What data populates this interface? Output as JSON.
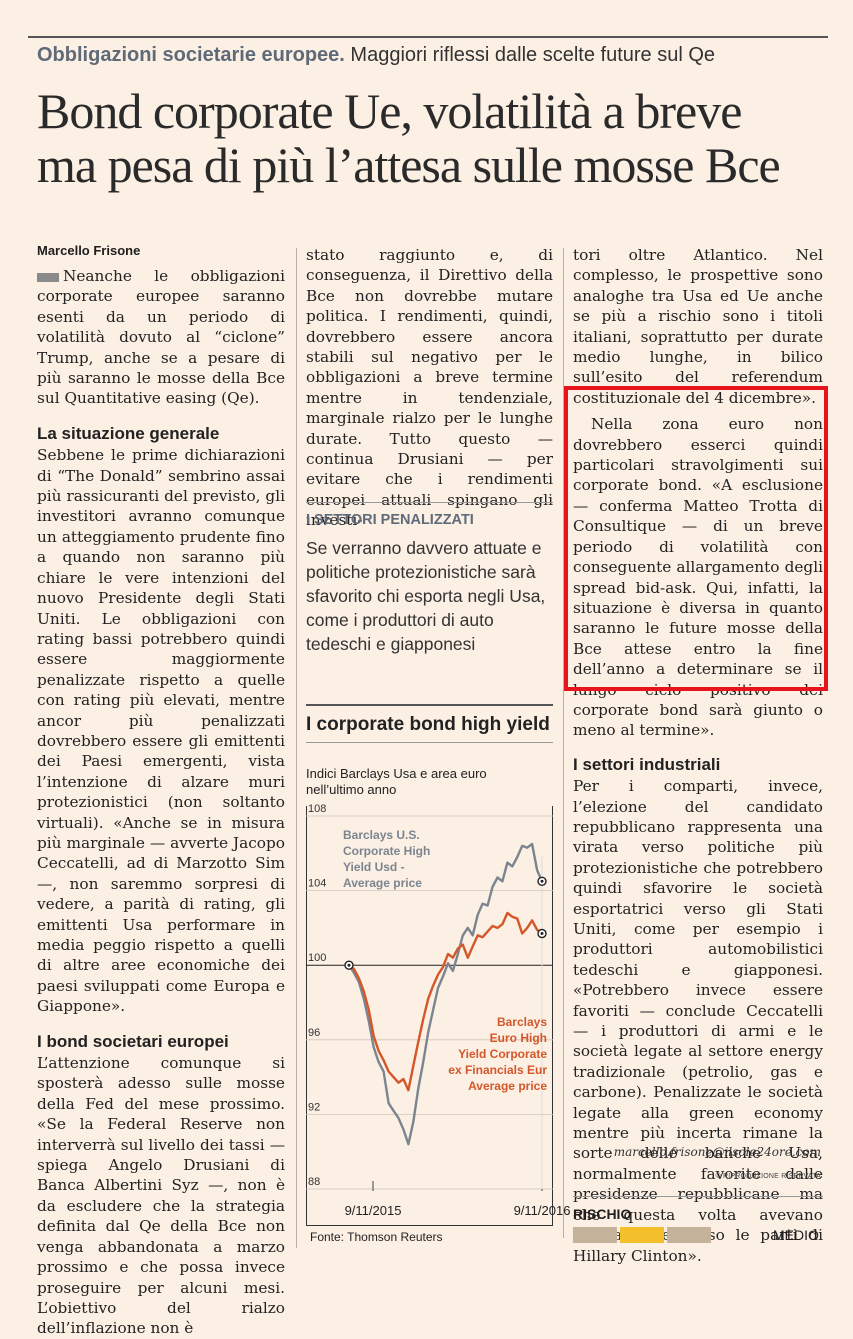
{
  "header": {
    "kicker_bold": "Obbligazioni societarie europee.",
    "kicker_rest": "Maggiori riflessi dalle scelte future sul Qe",
    "headline_line1": "Bond corporate Ue, volatilità a breve",
    "headline_line2": "ma pesa di più l’attesa sulle mosse Bce"
  },
  "byline": "Marcello Frisone",
  "column1": {
    "lead": "Neanche le obbligazioni corporate europee saranno esenti da un periodo di volatilità dovuto al “ciclone” Trump, anche se a pesare di più saranno le mosse della Bce sul Quantitative easing (Qe).",
    "subhead1": "La situazione generale",
    "para1": "Sebbene le prime dichiarazioni di “The Donald” sembrino assai più rassicuranti del previsto, gli investitori avranno comunque un atteggiamento prudente fino a quando non saranno più chiare le vere intenzioni del nuovo Presidente degli Stati Uniti. Le obbligazioni con rating bassi potrebbero quindi essere maggiormente penalizzate rispetto a quelle con rating più elevati, mentre ancor più penalizzati dovrebbero essere gli emittenti dei Paesi emergenti, vista l’intenzione di alzare muri protezionistici (non soltanto virtuali). «Anche se in misura più marginale — avverte Jacopo Ceccatelli, ad di Marzotto Sim —, non saremmo sorpresi di vedere, a parità di rating, gli emittenti Usa performare in media peggio rispetto a quelli di altre aree economiche dei paesi sviluppati come Europa e Giappone».",
    "subhead2": "I bond societari europei",
    "para2": "L’attenzione comunque si sposterà adesso sulle mosse della Fed del mese prossimo. «Se la Federal Reserve non interverrà sul livello dei tassi — spiega Angelo Drusiani di Banca Albertini Syz —, non è da escludere che la strategia definita dal Qe della Bce non venga abbandonata a marzo prossimo e che possa invece proseguire per alcuni mesi. L’obiettivo del rialzo dell’inflazione non è"
  },
  "column2": {
    "para": "stato raggiunto e, di conseguenza, il Direttivo della Bce non dovrebbe mutare politica. I rendimenti, quindi, dovrebbero essere ancora stabili sul negativo per le obbligazioni a breve termine mentre in tendenziale, marginale rialzo per le lunghe durate. Tutto questo — continua Drusiani — per evitare che i rendimenti europei attuali spingano gli investi-",
    "box_title": "I SETTORI PENALIZZATI",
    "box_text": "Se verranno davvero attuate e politiche protezionistiche sarà sfavorito chi esporta negli Usa, come i produttori di auto tedeschi e giapponesi"
  },
  "chart_data": {
    "type": "line",
    "title": "I corporate bond high yield",
    "subtitle": "Indici Barclays Usa e area euro nell’ultimo anno",
    "y_ticks": [
      88,
      92,
      96,
      100,
      104,
      108
    ],
    "ylim": [
      88,
      108
    ],
    "x_tick_labels": [
      "9/11/2015",
      "9/11/2016"
    ],
    "reference_line": 100,
    "source": "Fonte: Thomson Reuters",
    "series": [
      {
        "name": "Barclays U.S. Corporate High Yield Usd - Average price",
        "color": "#7b8590",
        "values": [
          100,
          99.6,
          99.1,
          98.2,
          97.0,
          95.6,
          94.8,
          94.3,
          92.6,
          92.2,
          91.8,
          91.2,
          90.4,
          91.6,
          93.4,
          94.8,
          96.4,
          97.6,
          98.8,
          99.4,
          100.1,
          99.7,
          100.6,
          101.6,
          102.0,
          101.6,
          102.7,
          103.3,
          103.2,
          104.2,
          104.7,
          104.5,
          105.5,
          105.3,
          105.8,
          106.4,
          106.3,
          106.5,
          105.1,
          104.5
        ]
      },
      {
        "name": "Barclays Euro High Yield Corporate ex Financials Eur Average price",
        "color": "#d4572a",
        "values": [
          100,
          99.8,
          99.3,
          98.6,
          97.6,
          96.2,
          95.4,
          94.9,
          94.3,
          94.0,
          93.7,
          93.9,
          93.3,
          94.6,
          95.9,
          97.1,
          98.2,
          98.9,
          99.5,
          99.9,
          100.6,
          100.4,
          100.9,
          101.1,
          100.4,
          101.0,
          101.6,
          101.5,
          101.8,
          102.1,
          102.0,
          102.2,
          102.8,
          102.6,
          102.5,
          101.7,
          102.0,
          102.4,
          101.9,
          101.7
        ]
      }
    ]
  },
  "column3": {
    "para1": "tori oltre Atlantico. Nel complesso, le prospettive sono analoghe tra Usa ed Ue anche se più a rischio sono i titoli italiani, soprattutto per durate medio lunghe, in bilico sull’esito del referendum costituzionale del 4 dicembre».",
    "para2": "Nella zona euro non dovrebbero esserci quindi particolari stravolgimenti sui corporate bond. «A esclusione — conferma Matteo Trotta di Consultique — di un breve periodo di volatilità con conseguente allargamento degli spread bid-ask. Qui, infatti, la situazione è diversa in quanto saranno le future mosse della Bce attese entro la fine dell’anno a determinare se il lungo ciclo positivo dei corporate bond sarà giunto o meno al termine».",
    "subhead": "I settori industriali",
    "para3": "Per i comparti, invece, l’elezione del candidato repubblicano rappresenta una virata verso politiche più protezionistiche che potrebbero quindi sfavorire le società esportatrici verso gli Stati Uniti, come per esempio i produttori automobilistici tedeschi e giapponesi. «Potrebbero invece essere favoriti — conclude Ceccatelli — i produttori di armi e le società legate al settore energy tradizionale (petrolio, gas e carbone). Penalizzate le società legate alla green economy mentre più incerta rimane la sorte delle banche Usa, normalmente favorite dalle presidenze repubblicane ma che questa volta avevano decisamente preso le parti di Hillary Clinton».",
    "email": "marcello.frisone@ilsole24ore.com",
    "repro": "© RIPRODUZIONE RISERVATA",
    "risk_label": "RISCHIO",
    "risk_level": "MEDIO",
    "risk_level_index": 2,
    "risk_colors": {
      "off": "#c4b29a",
      "on": "#f3c02b"
    }
  }
}
